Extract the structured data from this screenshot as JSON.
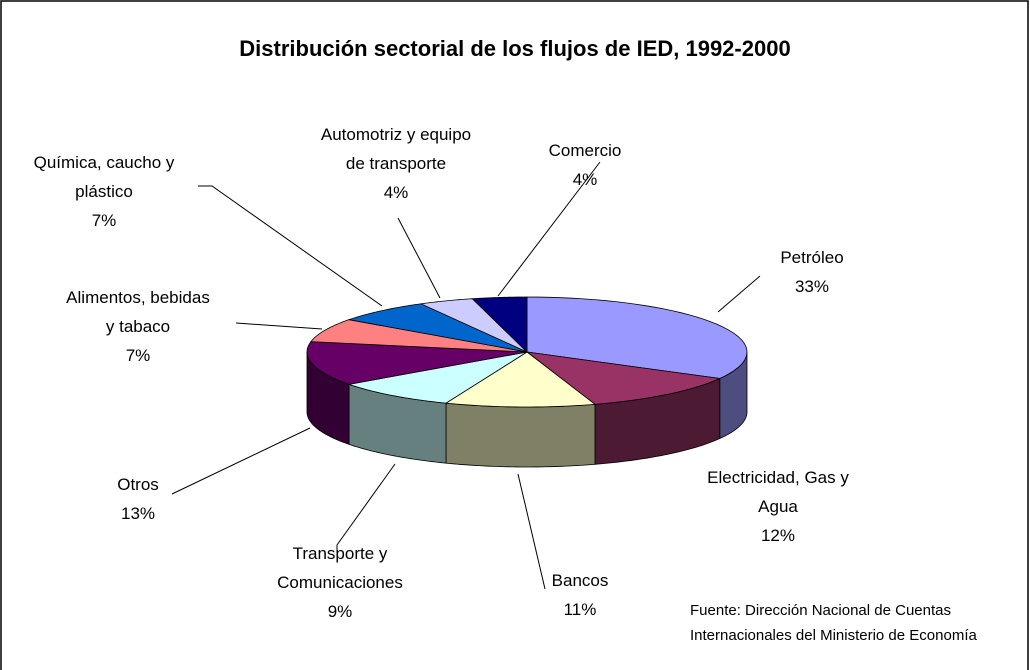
{
  "chart_data": {
    "type": "pie3d",
    "title": "Distribución sectorial de los flujos de IED, 1992-2000",
    "categories": [
      "Petróleo",
      "Electricidad, Gas y Agua",
      "Bancos",
      "Transporte y Comunicaciones",
      "Otros",
      "Alimentos, bebidas y tabaco",
      "Química, caucho y plástico",
      "Automotriz y equipo de transporte",
      "Comercio"
    ],
    "values": [
      33,
      12,
      11,
      9,
      13,
      7,
      7,
      4,
      4
    ],
    "value_labels": [
      "33%",
      "12%",
      "11%",
      "9%",
      "13%",
      "7%",
      "7%",
      "4%",
      "4%"
    ],
    "colors": [
      "#9999ff",
      "#993366",
      "#ffffcc",
      "#ccffff",
      "#660066",
      "#ff8080",
      "#0066cc",
      "#ccccff",
      "#000080"
    ],
    "source": "Fuente: Dirección Nacional de Cuentas Internacionales del Ministerio de Economía"
  }
}
